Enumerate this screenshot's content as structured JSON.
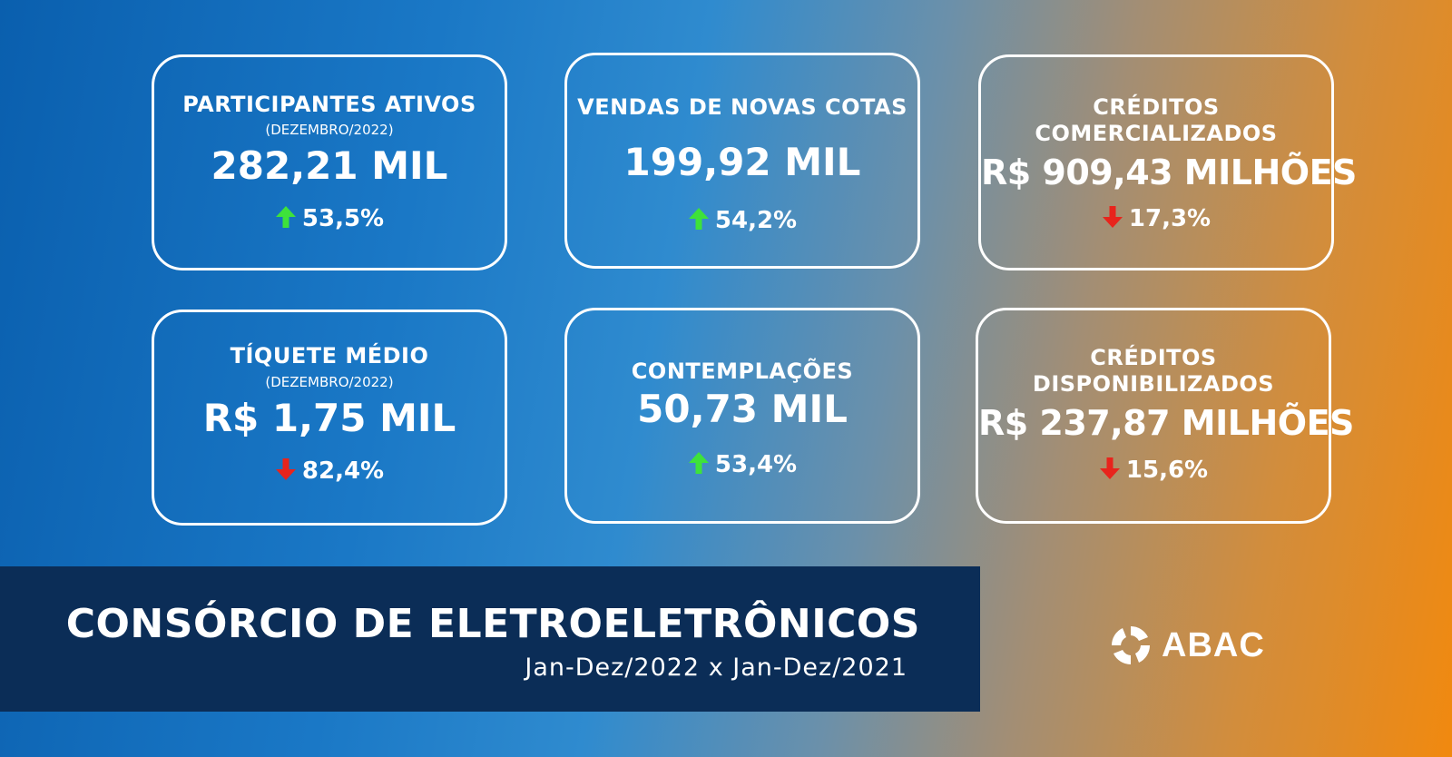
{
  "cards": [
    {
      "title_lines": [
        "PARTICIPANTES ATIVOS"
      ],
      "subtitle": "(DEZEMBRO/2022)",
      "value": "282,21 MIL",
      "change": "53,5%",
      "direction": "up"
    },
    {
      "title_lines": [
        "VENDAS DE NOVAS COTAS"
      ],
      "subtitle": "",
      "value": "199,92 MIL",
      "change": "54,2%",
      "direction": "up"
    },
    {
      "title_lines": [
        "CRÉDITOS",
        "COMERCIALIZADOS"
      ],
      "subtitle": "",
      "value": "R$ 909,43 MILHÕES",
      "change": "17,3%",
      "direction": "down"
    },
    {
      "title_lines": [
        "TÍQUETE MÉDIO"
      ],
      "subtitle": "(DEZEMBRO/2022)",
      "value": "R$ 1,75 MIL",
      "change": "82,4%",
      "direction": "down"
    },
    {
      "title_lines": [
        "CONTEMPLAÇÕES"
      ],
      "subtitle": "",
      "value": "50,73 MIL",
      "change": "53,4%",
      "direction": "up"
    },
    {
      "title_lines": [
        "CRÉDITOS",
        "DISPONIBILIZADOS"
      ],
      "subtitle": "",
      "value": "R$ 237,87 MILHÕES",
      "change": "15,6%",
      "direction": "down"
    }
  ],
  "banner": {
    "title": "CONSÓRCIO DE ELETROELETRÔNICOS",
    "period": "Jan-Dez/2022 x Jan-Dez/2021"
  },
  "logo": {
    "text": "ABAC",
    "icon": "abac-logo-icon"
  },
  "colors": {
    "up_arrow": "#3ee23a",
    "down_arrow": "#e8241c",
    "banner_bg": "#0b2d57"
  }
}
